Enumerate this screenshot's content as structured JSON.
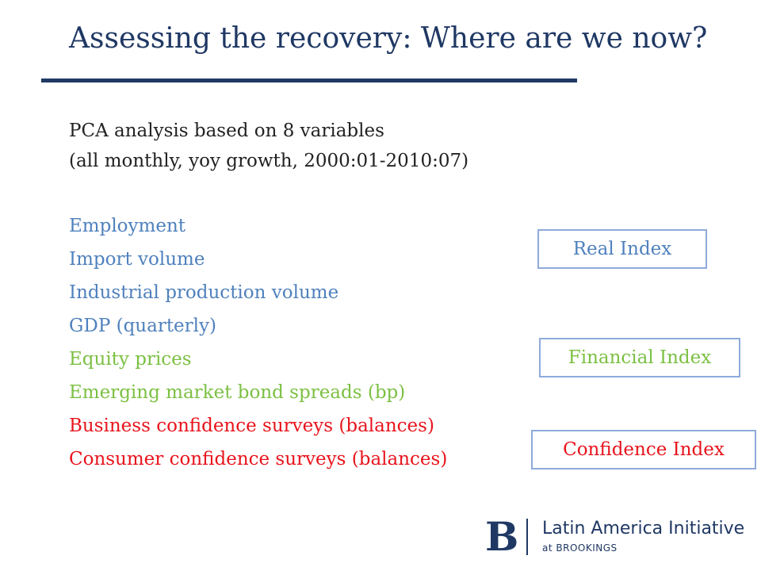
{
  "slide": {
    "title": "Assessing the recovery: Where are we now?",
    "intro_line1": "PCA analysis based on 8 variables",
    "intro_line2": "(all monthly, yoy growth, 2000:01-2010:07)",
    "variables": [
      "Employment",
      "Import volume",
      "Industrial production volume",
      "GDP (quarterly)",
      "Equity prices",
      "Emerging market bond spreads (bp)",
      "Business confidence surveys (balances)",
      "Consumer confidence surveys (balances)"
    ],
    "indices": {
      "real": "Real Index",
      "financial": "Financial Index",
      "confidence": "Confidence Index"
    },
    "colors": {
      "title": "#1f3864",
      "real": "#4f81bd",
      "financial": "#7cc043",
      "confidence": "#e8141c"
    }
  },
  "logo": {
    "mark": "B",
    "line1": "Latin America Initiative",
    "line2": "at BROOKINGS"
  }
}
